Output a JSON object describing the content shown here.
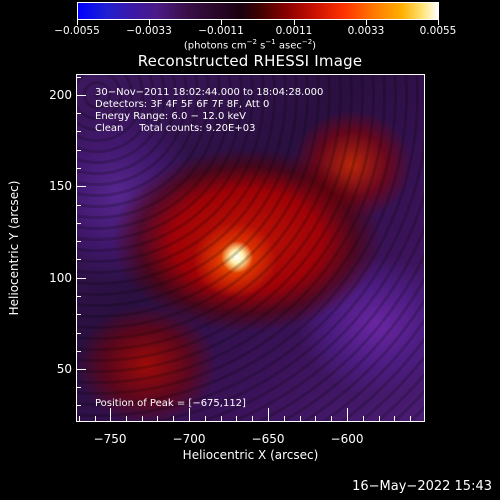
{
  "colorbar": {
    "labels": [
      "−0.0055",
      "−0.0033",
      "−0.0011",
      "0.0011",
      "0.0033",
      "0.0055"
    ],
    "units_prefix": "(photons cm",
    "units_exp1": "−2",
    "units_mid": " s",
    "units_exp2": "−1",
    "units_mid2": " asec",
    "units_exp3": "−2",
    "units_suffix": ")"
  },
  "title": "Reconstructed RHESSI Image",
  "info": {
    "line1": "30−Nov−2011 18:02:44.000 to 18:04:28.000",
    "line2": "Detectors: 3F 4F 5F 6F 7F 8F, Att 0",
    "line3": "Energy Range: 6.0 − 12.0 keV",
    "line4": "Clean     Total counts: 9.20E+03"
  },
  "peak": "Position of Peak = [−675,112]",
  "xaxis": {
    "title": "Heliocentric X (arcsec)",
    "ticks": [
      "−750",
      "−700",
      "−650",
      "−600"
    ]
  },
  "yaxis": {
    "title": "Heliocentric Y (arcsec)",
    "ticks": [
      "200",
      "150",
      "100",
      "50"
    ]
  },
  "footer": "16−May−2022 15:43",
  "colors": {
    "background": "#000000",
    "peak": "#ffffff",
    "hot": "#ff3300",
    "cool": "#3d1860"
  }
}
